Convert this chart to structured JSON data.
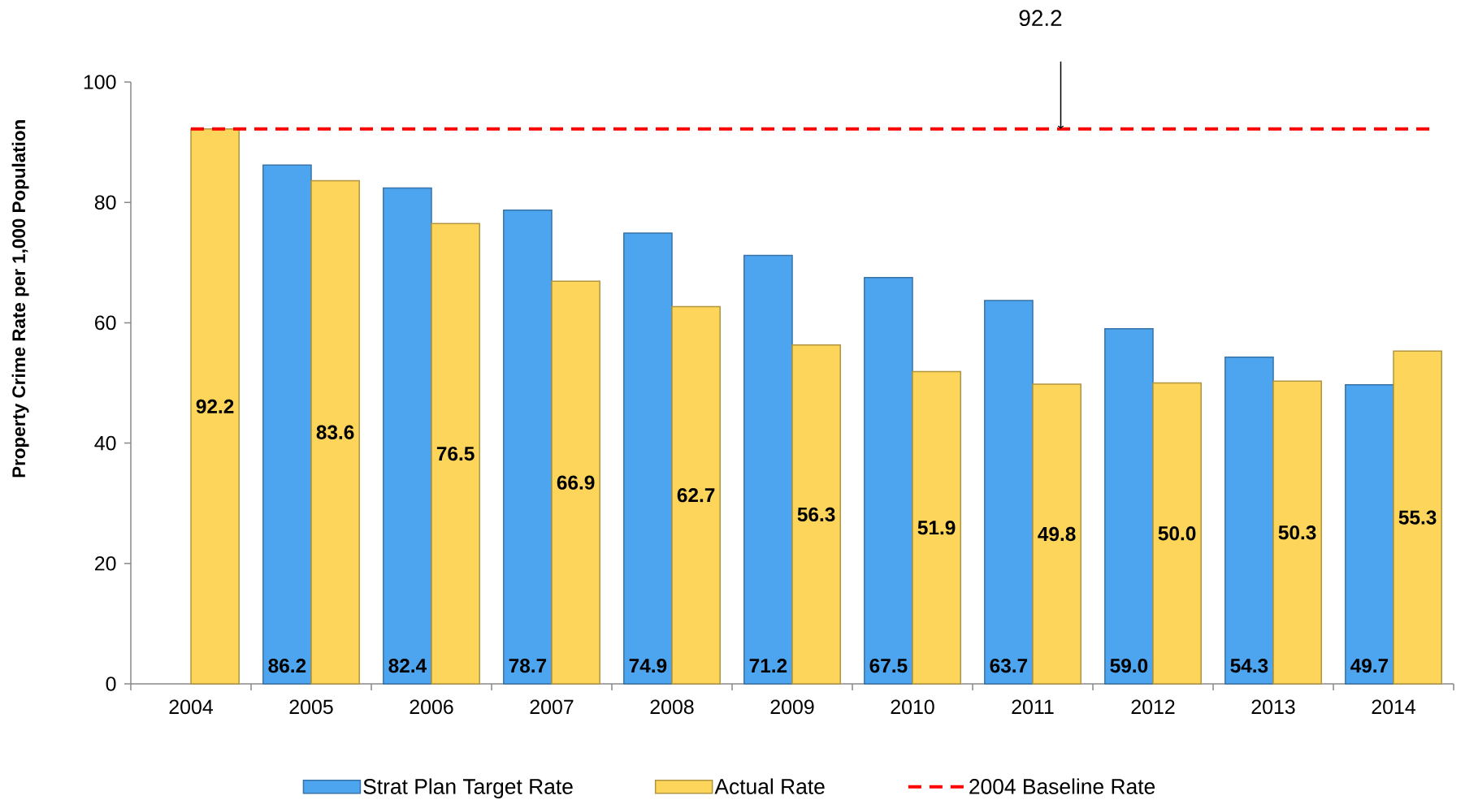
{
  "chart_data": {
    "type": "bar",
    "categories": [
      "2004",
      "2005",
      "2006",
      "2007",
      "2008",
      "2009",
      "2010",
      "2011",
      "2012",
      "2013",
      "2014"
    ],
    "series": [
      {
        "name": "Strat Plan Target Rate",
        "color": "#4ea5ef",
        "values": [
          null,
          86.2,
          82.4,
          78.7,
          74.9,
          71.2,
          67.5,
          63.7,
          59.0,
          54.3,
          49.7
        ],
        "value_labels": [
          null,
          "86.2",
          "82.4",
          "78.7",
          "74.9",
          "71.2",
          "67.5",
          "63.7",
          "59.0",
          "54.3",
          "49.7"
        ]
      },
      {
        "name": "Actual Rate",
        "color": "#fdd55a",
        "values": [
          92.2,
          83.6,
          76.5,
          66.9,
          62.7,
          56.3,
          51.9,
          49.8,
          50.0,
          50.3,
          55.3
        ],
        "value_labels": [
          "92.2",
          "83.6",
          "76.5",
          "66.9",
          "62.7",
          "56.3",
          "51.9",
          "49.8",
          "50.0",
          "50.3",
          "55.3"
        ]
      }
    ],
    "ylabel": "Property Crime Rate per 1,000 Population",
    "ylim": [
      0,
      100
    ],
    "yticks": [
      0,
      20,
      40,
      60,
      80,
      100
    ],
    "legend": "bottom",
    "ref_lines": [
      {
        "axis": "y",
        "value": 92.2,
        "label": "2004 Baseline Rate",
        "color": "#ff0000",
        "line_style": "dashed"
      }
    ],
    "annotations": [
      "92.2"
    ]
  }
}
